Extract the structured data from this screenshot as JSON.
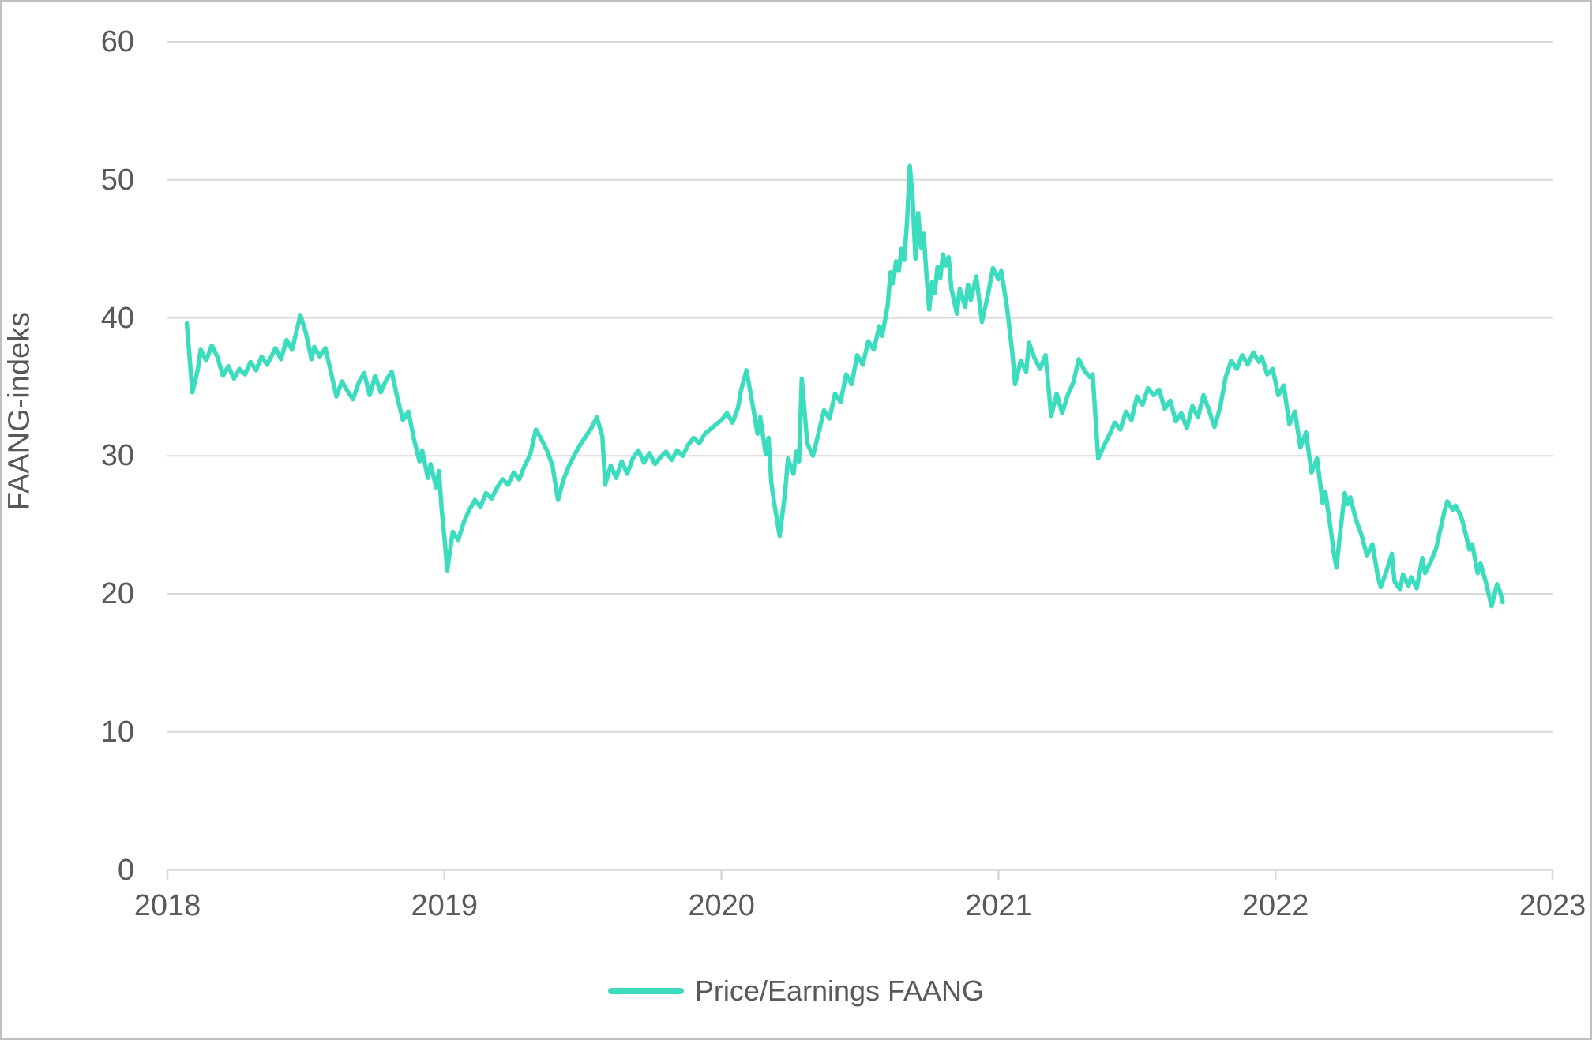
{
  "chart_data": {
    "type": "line",
    "title": "",
    "xlabel": "",
    "ylabel": "FAANG-indeks",
    "x_ticks": [
      "2018",
      "2019",
      "2020",
      "2021",
      "2022",
      "2023"
    ],
    "y_ticks": [
      "0",
      "10",
      "20",
      "30",
      "40",
      "50",
      "60"
    ],
    "xlim": [
      2018,
      2023
    ],
    "ylim": [
      0,
      60
    ],
    "grid": "horizontal",
    "legend_position": "bottom-center",
    "colors": {
      "line": "#3cdcbe",
      "grid": "#d9d9d9",
      "axis": "#d9d9d9",
      "text": "#595959"
    },
    "series": [
      {
        "name": "Price/Earnings FAANG",
        "color": "#3cdcbe",
        "points": [
          [
            2018.07,
            39.6
          ],
          [
            2018.09,
            34.6
          ],
          [
            2018.11,
            36.3
          ],
          [
            2018.12,
            37.7
          ],
          [
            2018.14,
            36.9
          ],
          [
            2018.16,
            38.0
          ],
          [
            2018.18,
            37.2
          ],
          [
            2018.2,
            35.8
          ],
          [
            2018.22,
            36.5
          ],
          [
            2018.24,
            35.6
          ],
          [
            2018.26,
            36.3
          ],
          [
            2018.28,
            35.9
          ],
          [
            2018.3,
            36.8
          ],
          [
            2018.32,
            36.2
          ],
          [
            2018.34,
            37.2
          ],
          [
            2018.36,
            36.6
          ],
          [
            2018.39,
            37.8
          ],
          [
            2018.41,
            37.0
          ],
          [
            2018.43,
            38.4
          ],
          [
            2018.45,
            37.7
          ],
          [
            2018.48,
            40.2
          ],
          [
            2018.5,
            38.9
          ],
          [
            2018.52,
            37.0
          ],
          [
            2018.53,
            37.9
          ],
          [
            2018.55,
            37.2
          ],
          [
            2018.57,
            37.8
          ],
          [
            2018.59,
            36.1
          ],
          [
            2018.61,
            34.3
          ],
          [
            2018.63,
            35.4
          ],
          [
            2018.65,
            34.7
          ],
          [
            2018.67,
            34.1
          ],
          [
            2018.69,
            35.3
          ],
          [
            2018.71,
            36.0
          ],
          [
            2018.73,
            34.4
          ],
          [
            2018.75,
            35.8
          ],
          [
            2018.77,
            34.6
          ],
          [
            2018.79,
            35.5
          ],
          [
            2018.81,
            36.1
          ],
          [
            2018.83,
            34.2
          ],
          [
            2018.85,
            32.6
          ],
          [
            2018.87,
            33.2
          ],
          [
            2018.89,
            31.2
          ],
          [
            2018.91,
            29.6
          ],
          [
            2018.92,
            30.4
          ],
          [
            2018.94,
            28.4
          ],
          [
            2018.95,
            29.4
          ],
          [
            2018.97,
            27.7
          ],
          [
            2018.98,
            28.9
          ],
          [
            2018.99,
            26.1
          ],
          [
            2019.0,
            24.1
          ],
          [
            2019.01,
            21.7
          ],
          [
            2019.03,
            24.5
          ],
          [
            2019.05,
            23.9
          ],
          [
            2019.07,
            25.2
          ],
          [
            2019.09,
            26.1
          ],
          [
            2019.11,
            26.8
          ],
          [
            2019.13,
            26.3
          ],
          [
            2019.15,
            27.3
          ],
          [
            2019.17,
            26.9
          ],
          [
            2019.19,
            27.7
          ],
          [
            2019.21,
            28.3
          ],
          [
            2019.23,
            27.9
          ],
          [
            2019.25,
            28.8
          ],
          [
            2019.27,
            28.3
          ],
          [
            2019.29,
            29.3
          ],
          [
            2019.31,
            30.1
          ],
          [
            2019.33,
            31.9
          ],
          [
            2019.35,
            31.2
          ],
          [
            2019.37,
            30.4
          ],
          [
            2019.39,
            29.3
          ],
          [
            2019.41,
            26.8
          ],
          [
            2019.43,
            28.3
          ],
          [
            2019.45,
            29.3
          ],
          [
            2019.47,
            30.1
          ],
          [
            2019.49,
            30.8
          ],
          [
            2019.51,
            31.4
          ],
          [
            2019.53,
            32.0
          ],
          [
            2019.55,
            32.8
          ],
          [
            2019.57,
            31.4
          ],
          [
            2019.58,
            27.9
          ],
          [
            2019.6,
            29.3
          ],
          [
            2019.62,
            28.4
          ],
          [
            2019.64,
            29.6
          ],
          [
            2019.66,
            28.7
          ],
          [
            2019.68,
            29.8
          ],
          [
            2019.7,
            30.4
          ],
          [
            2019.72,
            29.5
          ],
          [
            2019.74,
            30.2
          ],
          [
            2019.76,
            29.4
          ],
          [
            2019.78,
            29.9
          ],
          [
            2019.8,
            30.3
          ],
          [
            2019.82,
            29.7
          ],
          [
            2019.84,
            30.4
          ],
          [
            2019.86,
            30.0
          ],
          [
            2019.88,
            30.8
          ],
          [
            2019.9,
            31.3
          ],
          [
            2019.92,
            30.9
          ],
          [
            2019.94,
            31.6
          ],
          [
            2019.97,
            32.1
          ],
          [
            2020.0,
            32.6
          ],
          [
            2020.02,
            33.1
          ],
          [
            2020.04,
            32.4
          ],
          [
            2020.06,
            33.5
          ],
          [
            2020.07,
            34.7
          ],
          [
            2020.09,
            36.2
          ],
          [
            2020.11,
            34.0
          ],
          [
            2020.13,
            31.6
          ],
          [
            2020.14,
            32.8
          ],
          [
            2020.16,
            30.1
          ],
          [
            2020.17,
            31.3
          ],
          [
            2020.18,
            28.1
          ],
          [
            2020.19,
            26.6
          ],
          [
            2020.2,
            25.4
          ],
          [
            2020.21,
            24.2
          ],
          [
            2020.23,
            27.4
          ],
          [
            2020.24,
            29.8
          ],
          [
            2020.26,
            28.7
          ],
          [
            2020.27,
            30.3
          ],
          [
            2020.28,
            29.6
          ],
          [
            2020.29,
            35.6
          ],
          [
            2020.31,
            30.9
          ],
          [
            2020.33,
            30.0
          ],
          [
            2020.35,
            31.6
          ],
          [
            2020.37,
            33.3
          ],
          [
            2020.39,
            32.7
          ],
          [
            2020.41,
            34.5
          ],
          [
            2020.43,
            33.9
          ],
          [
            2020.45,
            35.9
          ],
          [
            2020.47,
            35.2
          ],
          [
            2020.49,
            37.3
          ],
          [
            2020.51,
            36.6
          ],
          [
            2020.53,
            38.3
          ],
          [
            2020.55,
            37.7
          ],
          [
            2020.57,
            39.4
          ],
          [
            2020.58,
            38.7
          ],
          [
            2020.6,
            40.9
          ],
          [
            2020.61,
            43.3
          ],
          [
            2020.62,
            42.5
          ],
          [
            2020.63,
            44.1
          ],
          [
            2020.64,
            43.4
          ],
          [
            2020.65,
            45.0
          ],
          [
            2020.66,
            44.2
          ],
          [
            2020.67,
            47.0
          ],
          [
            2020.68,
            51.0
          ],
          [
            2020.69,
            48.6
          ],
          [
            2020.7,
            44.3
          ],
          [
            2020.71,
            47.6
          ],
          [
            2020.72,
            45.1
          ],
          [
            2020.73,
            46.1
          ],
          [
            2020.74,
            43.1
          ],
          [
            2020.75,
            40.6
          ],
          [
            2020.76,
            42.6
          ],
          [
            2020.77,
            41.8
          ],
          [
            2020.78,
            43.7
          ],
          [
            2020.79,
            42.9
          ],
          [
            2020.8,
            44.6
          ],
          [
            2020.81,
            43.8
          ],
          [
            2020.82,
            44.4
          ],
          [
            2020.83,
            42.1
          ],
          [
            2020.85,
            40.3
          ],
          [
            2020.86,
            42.1
          ],
          [
            2020.88,
            40.8
          ],
          [
            2020.89,
            42.4
          ],
          [
            2020.9,
            41.3
          ],
          [
            2020.92,
            43.0
          ],
          [
            2020.94,
            39.7
          ],
          [
            2020.96,
            41.5
          ],
          [
            2020.98,
            43.6
          ],
          [
            2021.0,
            42.8
          ],
          [
            2021.01,
            43.4
          ],
          [
            2021.03,
            40.9
          ],
          [
            2021.05,
            37.5
          ],
          [
            2021.06,
            35.2
          ],
          [
            2021.08,
            36.9
          ],
          [
            2021.1,
            36.1
          ],
          [
            2021.11,
            38.2
          ],
          [
            2021.13,
            37.1
          ],
          [
            2021.15,
            36.3
          ],
          [
            2021.17,
            37.3
          ],
          [
            2021.19,
            32.9
          ],
          [
            2021.21,
            34.5
          ],
          [
            2021.23,
            33.1
          ],
          [
            2021.25,
            34.4
          ],
          [
            2021.27,
            35.3
          ],
          [
            2021.29,
            37.0
          ],
          [
            2021.31,
            36.2
          ],
          [
            2021.33,
            35.7
          ],
          [
            2021.34,
            35.9
          ],
          [
            2021.36,
            29.8
          ],
          [
            2021.38,
            30.7
          ],
          [
            2021.4,
            31.5
          ],
          [
            2021.42,
            32.4
          ],
          [
            2021.44,
            31.9
          ],
          [
            2021.46,
            33.2
          ],
          [
            2021.48,
            32.6
          ],
          [
            2021.5,
            34.3
          ],
          [
            2021.52,
            33.7
          ],
          [
            2021.54,
            34.9
          ],
          [
            2021.56,
            34.4
          ],
          [
            2021.58,
            34.8
          ],
          [
            2021.6,
            33.4
          ],
          [
            2021.62,
            34.0
          ],
          [
            2021.64,
            32.5
          ],
          [
            2021.66,
            33.1
          ],
          [
            2021.68,
            32.0
          ],
          [
            2021.7,
            33.6
          ],
          [
            2021.72,
            32.8
          ],
          [
            2021.74,
            34.4
          ],
          [
            2021.76,
            33.3
          ],
          [
            2021.78,
            32.1
          ],
          [
            2021.8,
            33.5
          ],
          [
            2021.82,
            35.7
          ],
          [
            2021.84,
            36.9
          ],
          [
            2021.86,
            36.3
          ],
          [
            2021.88,
            37.3
          ],
          [
            2021.9,
            36.6
          ],
          [
            2021.92,
            37.5
          ],
          [
            2021.94,
            36.8
          ],
          [
            2021.95,
            37.2
          ],
          [
            2021.97,
            35.9
          ],
          [
            2021.99,
            36.3
          ],
          [
            2022.01,
            34.4
          ],
          [
            2022.03,
            35.1
          ],
          [
            2022.05,
            32.3
          ],
          [
            2022.07,
            33.2
          ],
          [
            2022.09,
            30.6
          ],
          [
            2022.11,
            31.7
          ],
          [
            2022.13,
            28.8
          ],
          [
            2022.15,
            29.8
          ],
          [
            2022.17,
            26.6
          ],
          [
            2022.18,
            27.4
          ],
          [
            2022.2,
            24.6
          ],
          [
            2022.21,
            23.0
          ],
          [
            2022.22,
            21.9
          ],
          [
            2022.23,
            23.8
          ],
          [
            2022.25,
            27.3
          ],
          [
            2022.26,
            26.5
          ],
          [
            2022.27,
            27.0
          ],
          [
            2022.29,
            25.4
          ],
          [
            2022.31,
            24.3
          ],
          [
            2022.33,
            22.8
          ],
          [
            2022.35,
            23.6
          ],
          [
            2022.37,
            21.2
          ],
          [
            2022.38,
            20.5
          ],
          [
            2022.4,
            21.6
          ],
          [
            2022.42,
            22.9
          ],
          [
            2022.43,
            20.9
          ],
          [
            2022.45,
            20.3
          ],
          [
            2022.46,
            21.4
          ],
          [
            2022.48,
            20.6
          ],
          [
            2022.49,
            21.2
          ],
          [
            2022.51,
            20.4
          ],
          [
            2022.53,
            22.6
          ],
          [
            2022.54,
            21.5
          ],
          [
            2022.56,
            22.3
          ],
          [
            2022.58,
            23.3
          ],
          [
            2022.6,
            25.1
          ],
          [
            2022.61,
            26.0
          ],
          [
            2022.62,
            26.7
          ],
          [
            2022.64,
            26.1
          ],
          [
            2022.65,
            26.4
          ],
          [
            2022.67,
            25.6
          ],
          [
            2022.68,
            24.9
          ],
          [
            2022.7,
            23.2
          ],
          [
            2022.71,
            23.6
          ],
          [
            2022.73,
            21.5
          ],
          [
            2022.74,
            22.2
          ],
          [
            2022.76,
            20.8
          ],
          [
            2022.78,
            19.1
          ],
          [
            2022.8,
            20.7
          ],
          [
            2022.81,
            20.2
          ],
          [
            2022.82,
            19.4
          ]
        ]
      }
    ]
  },
  "legend": {
    "label": "Price/Earnings FAANG"
  }
}
